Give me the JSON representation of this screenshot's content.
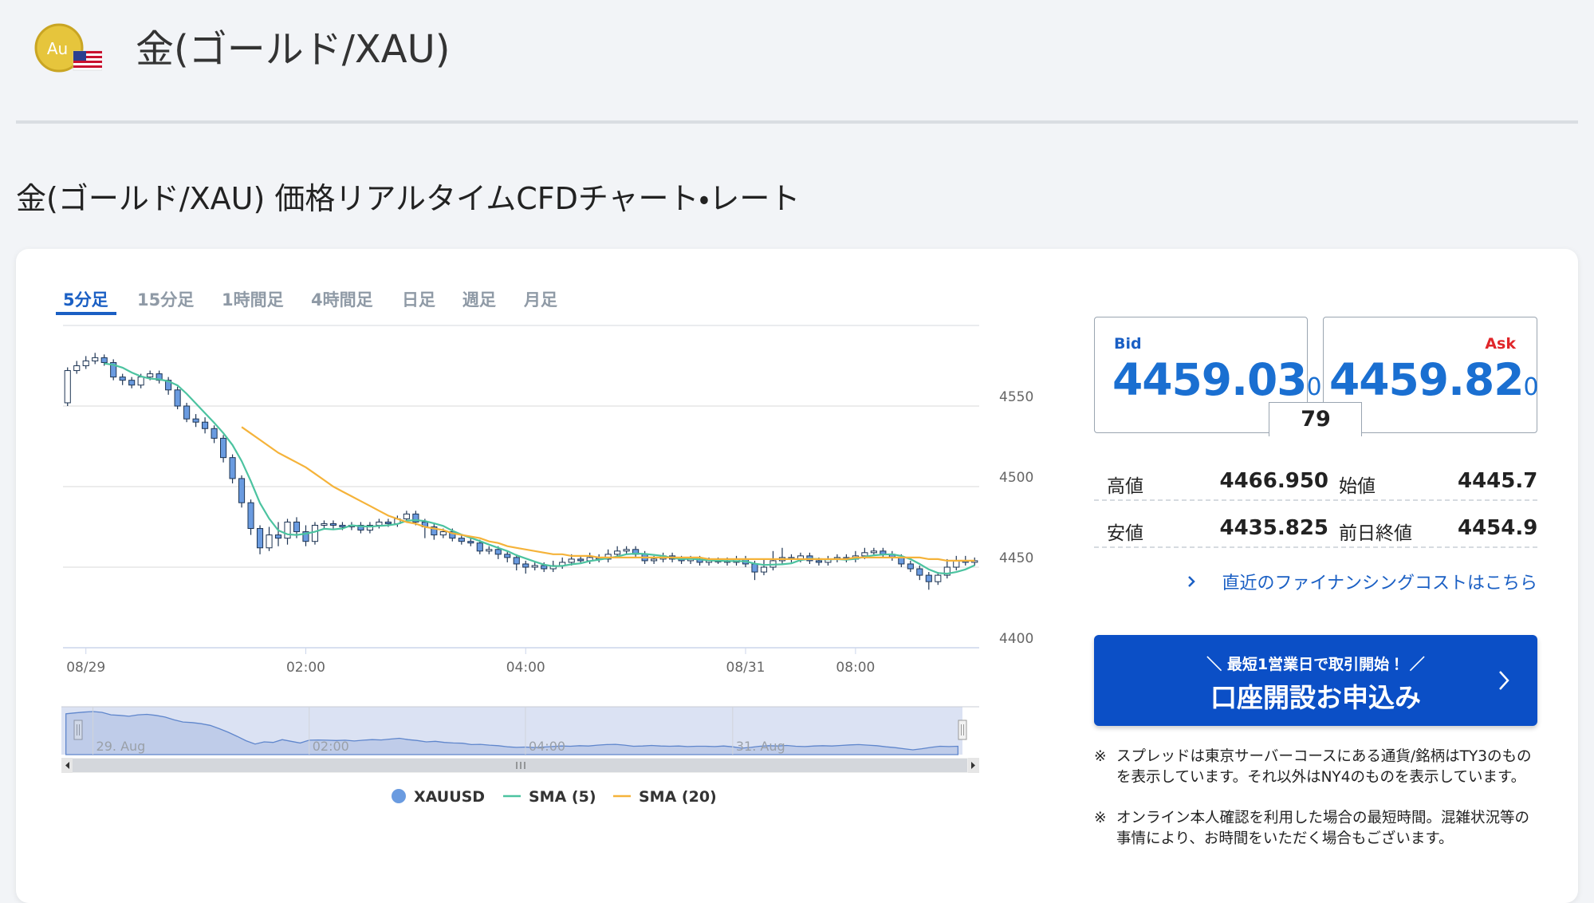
{
  "header": {
    "logo_text": "Au",
    "title": "金(ゴールド/XAU)"
  },
  "heading": "金(ゴールド/XAU) 価格リアルタイムCFDチャート・レート",
  "tabs": [
    {
      "label": "5分足",
      "active": true
    },
    {
      "label": "15分足",
      "active": false
    },
    {
      "label": "1時間足",
      "active": false
    },
    {
      "label": "4時間足",
      "active": false
    },
    {
      "label": "日足",
      "active": false
    },
    {
      "label": "週足",
      "active": false
    },
    {
      "label": "月足",
      "active": false
    }
  ],
  "chart_data": {
    "type": "candlestick",
    "xlim": [
      -0.5,
      99.5
    ],
    "xticks": [
      {
        "value": 2,
        "label": "08/29"
      },
      {
        "value": 26,
        "label": "02:00"
      },
      {
        "value": 50,
        "label": "04:00"
      },
      {
        "value": 74,
        "label": "08/31"
      },
      {
        "value": 86,
        "label": "08:00"
      }
    ],
    "ylim": [
      4400,
      4600
    ],
    "yticks": [
      4400,
      4450,
      4500,
      4550
    ],
    "grid": true,
    "series": [
      {
        "name": "XAUUSD",
        "color": "#6a9be0",
        "open": [
          4552,
          4572,
          4575,
          4578,
          4580,
          4577,
          4568,
          4566,
          4563,
          4568,
          4570,
          4566,
          4560,
          4550,
          4542,
          4540,
          4536,
          4530,
          4518,
          4505,
          4490,
          4474,
          4462,
          4470,
          4468,
          4478,
          4472,
          4466,
          4476,
          4477,
          4476,
          4475,
          4476,
          4473,
          4476,
          4478,
          4477,
          4480,
          4483,
          4478,
          4475,
          4470,
          4472,
          4468,
          4466,
          4465,
          4460,
          4461,
          4458,
          4456,
          4452,
          4450,
          4451,
          4449,
          4451,
          4453,
          4455,
          4454,
          4456,
          4455,
          4458,
          4460,
          4461,
          4458,
          4454,
          4455,
          4457,
          4455,
          4454,
          4455,
          4453,
          4454,
          4454,
          4453,
          4455,
          4452,
          4447,
          4450,
          4454,
          4456,
          4455,
          4457,
          4454,
          4453,
          4455,
          4456,
          4455,
          4457,
          4459,
          4460,
          4458,
          4456,
          4452,
          4449,
          4445,
          4441,
          4445,
          4450,
          4454,
          4453
        ],
        "high": [
          4574,
          4578,
          4581,
          4583,
          4582,
          4579,
          4570,
          4568,
          4570,
          4572,
          4572,
          4568,
          4562,
          4552,
          4545,
          4543,
          4538,
          4532,
          4520,
          4507,
          4492,
          4476,
          4475,
          4478,
          4480,
          4481,
          4476,
          4478,
          4479,
          4479,
          4478,
          4478,
          4478,
          4478,
          4480,
          4480,
          4482,
          4485,
          4485,
          4480,
          4477,
          4474,
          4474,
          4470,
          4468,
          4467,
          4463,
          4463,
          4460,
          4458,
          4454,
          4453,
          4453,
          4454,
          4456,
          4458,
          4457,
          4459,
          4458,
          4461,
          4463,
          4463,
          4463,
          4460,
          4457,
          4459,
          4459,
          4457,
          4457,
          4457,
          4456,
          4456,
          4456,
          4457,
          4457,
          4454,
          4455,
          4460,
          4462,
          4458,
          4459,
          4459,
          4456,
          4457,
          4458,
          4458,
          4460,
          4462,
          4462,
          4462,
          4460,
          4458,
          4454,
          4451,
          4447,
          4447,
          4455,
          4457,
          4457,
          4456
        ],
        "low": [
          4550,
          4570,
          4573,
          4576,
          4575,
          4566,
          4563,
          4561,
          4561,
          4566,
          4564,
          4557,
          4548,
          4540,
          4537,
          4533,
          4527,
          4515,
          4502,
          4487,
          4470,
          4458,
          4460,
          4463,
          4464,
          4468,
          4463,
          4464,
          4474,
          4474,
          4473,
          4473,
          4471,
          4471,
          4474,
          4475,
          4475,
          4478,
          4476,
          4468,
          4467,
          4468,
          4466,
          4464,
          4463,
          4458,
          4458,
          4455,
          4453,
          4448,
          4446,
          4448,
          4447,
          4447,
          4449,
          4451,
          4452,
          4452,
          4453,
          4453,
          4456,
          4458,
          4456,
          4452,
          4452,
          4453,
          4453,
          4452,
          4452,
          4451,
          4451,
          4452,
          4451,
          4451,
          4450,
          4442,
          4445,
          4448,
          4452,
          4453,
          4453,
          4452,
          4451,
          4451,
          4453,
          4453,
          4453,
          4455,
          4457,
          4456,
          4454,
          4450,
          4447,
          4442,
          4436,
          4439,
          4443,
          4448,
          4451,
          4451
        ],
        "close": [
          4572,
          4575,
          4578,
          4580,
          4577,
          4568,
          4566,
          4563,
          4568,
          4570,
          4566,
          4560,
          4550,
          4542,
          4540,
          4536,
          4530,
          4518,
          4505,
          4490,
          4474,
          4462,
          4470,
          4468,
          4478,
          4472,
          4466,
          4476,
          4477,
          4476,
          4475,
          4476,
          4473,
          4476,
          4478,
          4477,
          4480,
          4483,
          4478,
          4475,
          4470,
          4472,
          4468,
          4466,
          4465,
          4460,
          4461,
          4458,
          4456,
          4452,
          4450,
          4451,
          4449,
          4451,
          4453,
          4455,
          4454,
          4456,
          4455,
          4458,
          4460,
          4461,
          4458,
          4454,
          4455,
          4457,
          4455,
          4454,
          4455,
          4453,
          4454,
          4454,
          4453,
          4455,
          4452,
          4447,
          4450,
          4454,
          4456,
          4455,
          4457,
          4454,
          4453,
          4455,
          4456,
          4455,
          4457,
          4459,
          4460,
          4458,
          4456,
          4452,
          4449,
          4445,
          4441,
          4445,
          4450,
          4454,
          4453,
          4454
        ]
      },
      {
        "name": "SMA (5)",
        "type": "line",
        "color": "#4cc3a0",
        "values": [
          null,
          null,
          null,
          null,
          4576.4,
          4575.6,
          4573.8,
          4570.8,
          4568.4,
          4567,
          4566.6,
          4565.4,
          4562.8,
          4557.6,
          4551.6,
          4545.6,
          4539.6,
          4533.2,
          4525.8,
          4515.8,
          4503.4,
          4489.8,
          4480.2,
          4472.8,
          4470.4,
          4470,
          4470.8,
          4472,
          4473.8,
          4473.4,
          4474,
          4476,
          4475.4,
          4475.2,
          4475.6,
          4476,
          4476.8,
          4478.8,
          4479.2,
          4478.6,
          4477.2,
          4475.6,
          4472.6,
          4470.2,
          4468.2,
          4466.2,
          4464,
          4462,
          4460,
          4457.4,
          4455.4,
          4453.4,
          4451.6,
          4450.6,
          4450.8,
          4451.8,
          4452.4,
          4453.8,
          4454.6,
          4455.6,
          4456.6,
          4458,
          4458.4,
          4458.2,
          4457.6,
          4457,
          4455.8,
          4455,
          4455.2,
          4454.8,
          4454.2,
          4454,
          4453.8,
          4453.8,
          4453.6,
          4452.2,
          4451.4,
          4451.6,
          4451.8,
          4452.4,
          4454.4,
          4455.2,
          4455,
          4454.8,
          4455,
          4454.6,
          4455.2,
          4456.4,
          4457.4,
          4457.8,
          4458,
          4457,
          4455,
          4452,
          4448.6,
          4446.4,
          4446,
          4447,
          4448.6,
          4451.2
        ]
      },
      {
        "name": "SMA (20)",
        "type": "line",
        "color": "#f5b33a",
        "values": [
          null,
          null,
          null,
          null,
          null,
          null,
          null,
          null,
          null,
          null,
          null,
          null,
          null,
          null,
          null,
          null,
          null,
          null,
          null,
          4537,
          4533,
          4529,
          4525,
          4521,
          4518,
          4515,
          4512,
          4508,
          4504,
          4500,
          4497,
          4494,
          4491,
          4488,
          4485,
          4482,
          4480,
          4478,
          4477,
          4475,
          4474,
          4473,
          4471,
          4470,
          4469,
          4468,
          4466,
          4465,
          4463,
          4462,
          4461,
          4460,
          4459,
          4458,
          4458,
          4457,
          4457,
          4457,
          4456,
          4456,
          4456,
          4456,
          4456,
          4456,
          4456,
          4456,
          4456,
          4456,
          4456,
          4456,
          4455,
          4455,
          4455,
          4455,
          4455,
          4455,
          4455,
          4455,
          4455,
          4455,
          4455,
          4455,
          4455,
          4455,
          4455,
          4455,
          4456,
          4456,
          4456,
          4456,
          4456,
          4456,
          4456,
          4456,
          4455,
          4455,
          4454,
          4454,
          4454,
          4454
        ]
      }
    ],
    "navigator": {
      "xticks": [
        {
          "value": 3,
          "label": "29. Aug"
        },
        {
          "value": 27,
          "label": "02:00"
        },
        {
          "value": 51,
          "label": "04:00"
        },
        {
          "value": 74,
          "label": "31. Aug"
        }
      ]
    }
  },
  "quote": {
    "bid_label": "Bid",
    "bid": "4459.03",
    "bid_small": "0",
    "ask_label": "Ask",
    "ask": "4459.82",
    "ask_small": "0",
    "spread": "79"
  },
  "stats": [
    {
      "label": "高値",
      "value": "4466.950"
    },
    {
      "label": "始値",
      "value": "4445.725"
    },
    {
      "label": "安値",
      "value": "4435.825"
    },
    {
      "label": "前日終値",
      "value": "4454.950"
    }
  ],
  "link": "直近のファイナンシングコストはこちら",
  "cta": {
    "sub": "＼ 最短1営業日で取引開始！ ／",
    "main": "口座開設お申込み"
  },
  "notes": [
    {
      "mark": "※",
      "text": "スプレッドは東京サーバーコースにある通貨/銘柄はTY3のものを表示しています。それ以外はNY4のものを表示しています。"
    },
    {
      "mark": "※",
      "text": "オンライン本人確認を利用した場合の最短時間。混雑状況等の事情により、お時間をいただく場合もございます。"
    }
  ]
}
